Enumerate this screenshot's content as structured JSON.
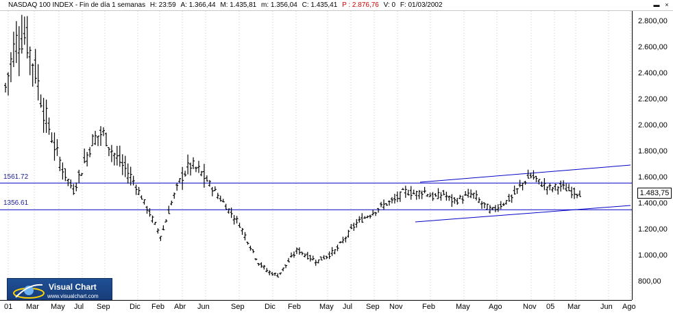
{
  "window": {
    "minimize_label": "▬",
    "close_label": "×"
  },
  "header": {
    "instrument": "NASDAQ 100 INDEX - Fin de día 1 semanas",
    "hour": "H: 23:59",
    "open": "A: 1.366,44",
    "high": "M: 1.435,81",
    "low": "m: 1.356,04",
    "close": "C: 1.435,41",
    "p": "P : 2.876,76",
    "volume": "V: 0",
    "date": "F: 01/03/2002"
  },
  "levels": {
    "upper": "1561.72",
    "lower": "1356.61"
  },
  "last_price": "1.483,75",
  "logo": {
    "name": "Visual Chart",
    "url": "www.visualchart.com"
  },
  "colors": {
    "header_red": "#d40000",
    "level_line": "#0000c8",
    "bars": "#000000"
  },
  "chart_data": {
    "type": "ohlc",
    "ylim": [
      700,
      2950
    ],
    "y_ticks": [
      "2.800,00",
      "2.600,00",
      "2.400,00",
      "2.200,00",
      "2.000,00",
      "1.800,00",
      "1.600,00",
      "1.400,00",
      "1.200,00",
      "1.000,00",
      "800,00"
    ],
    "x_ticks": [
      "01",
      "Mar",
      "May",
      "Jul",
      "Sep",
      "Dic",
      "Feb",
      "Abr",
      "Jun",
      "Sep",
      "Dic",
      "Feb",
      "May",
      "Jul",
      "Sep",
      "Nov",
      "Feb",
      "May",
      "Ago",
      "Nov",
      "05",
      "Mar",
      "Jun",
      "Ago"
    ],
    "horizontal_levels": [
      1561.72,
      1356.61
    ],
    "close_trend": [
      2300,
      2650,
      2700,
      2450,
      2100,
      1850,
      1650,
      1500,
      1700,
      1900,
      1950,
      1800,
      1700,
      1600,
      1450,
      1300,
      1150,
      1400,
      1600,
      1700,
      1650,
      1550,
      1450,
      1350,
      1250,
      1100,
      950,
      880,
      850,
      950,
      1050,
      1000,
      960,
      1000,
      1050,
      1150,
      1250,
      1300,
      1350,
      1400,
      1430,
      1500,
      1480,
      1500,
      1450,
      1480,
      1420,
      1450,
      1480,
      1400,
      1350,
      1400,
      1450,
      1550,
      1620,
      1560,
      1520,
      1540,
      1500,
      1483.75
    ]
  }
}
